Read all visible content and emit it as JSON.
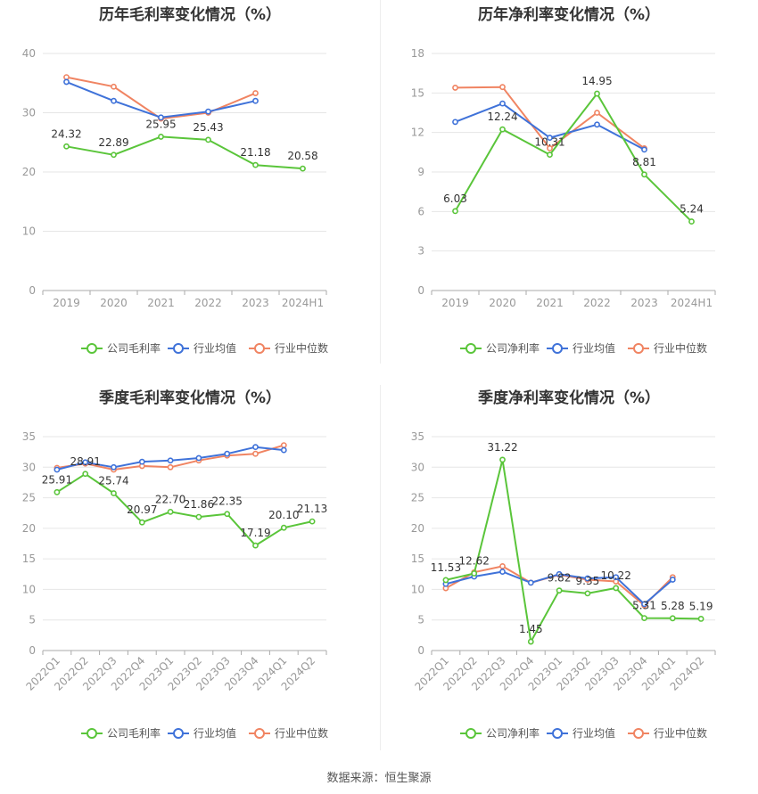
{
  "source_label": "数据来源：恒生聚源",
  "colors": {
    "company": "#5ac53a",
    "industry_avg": "#3f72d9",
    "industry_median": "#f08462",
    "grid": "#e6e6e6",
    "axis": "#999999"
  },
  "chart_data": [
    {
      "id": "annual-gross",
      "type": "line",
      "title": "历年毛利率变化情况（%）",
      "categories": [
        "2019",
        "2020",
        "2021",
        "2022",
        "2023",
        "2024H1"
      ],
      "ylim": [
        0,
        40
      ],
      "yticks": [
        0,
        10,
        20,
        30,
        40
      ],
      "grid": true,
      "legend_position": "bottom",
      "series": [
        {
          "name": "公司毛利率",
          "color": "#5ac53a",
          "values": [
            24.32,
            22.89,
            25.95,
            25.43,
            21.18,
            20.58
          ],
          "labels": [
            "24.32",
            "22.89",
            "25.95",
            "25.43",
            "21.18",
            "20.58"
          ]
        },
        {
          "name": "行业均值",
          "color": "#3f72d9",
          "values": [
            35.2,
            32.0,
            29.2,
            30.2,
            32.0,
            null
          ]
        },
        {
          "name": "行业中位数",
          "color": "#f08462",
          "values": [
            36.0,
            34.4,
            29.0,
            30.0,
            33.3,
            null
          ]
        }
      ]
    },
    {
      "id": "annual-net",
      "type": "line",
      "title": "历年净利率变化情况（%）",
      "categories": [
        "2019",
        "2020",
        "2021",
        "2022",
        "2023",
        "2024H1"
      ],
      "ylim": [
        0,
        18
      ],
      "yticks": [
        0,
        3,
        6,
        9,
        12,
        15,
        18
      ],
      "grid": true,
      "legend_position": "bottom",
      "series": [
        {
          "name": "公司净利率",
          "color": "#5ac53a",
          "values": [
            6.03,
            12.24,
            10.31,
            14.95,
            8.81,
            5.24
          ],
          "labels": [
            "6.03",
            "12.24",
            "10.31",
            "14.95",
            "8.81",
            "5.24"
          ]
        },
        {
          "name": "行业均值",
          "color": "#3f72d9",
          "values": [
            12.8,
            14.2,
            11.6,
            12.6,
            10.7,
            null
          ]
        },
        {
          "name": "行业中位数",
          "color": "#f08462",
          "values": [
            15.4,
            15.45,
            10.8,
            13.5,
            10.8,
            null
          ]
        }
      ]
    },
    {
      "id": "quarter-gross",
      "type": "line",
      "title": "季度毛利率变化情况（%）",
      "categories": [
        "2022Q1",
        "2022Q2",
        "2022Q3",
        "2022Q4",
        "2023Q1",
        "2023Q2",
        "2023Q3",
        "2023Q4",
        "2024Q1",
        "2024Q2"
      ],
      "ylim": [
        0,
        35
      ],
      "yticks": [
        0,
        5,
        10,
        15,
        20,
        25,
        30,
        35
      ],
      "grid": true,
      "legend_position": "bottom",
      "series": [
        {
          "name": "公司毛利率",
          "color": "#5ac53a",
          "values": [
            25.91,
            28.91,
            25.74,
            20.97,
            22.7,
            21.86,
            22.35,
            17.19,
            20.1,
            21.13
          ],
          "labels": [
            "25.91",
            "28.91",
            "25.74",
            "20.97",
            "22.70",
            "21.86",
            "22.35",
            "17.19",
            "20.10",
            "21.13"
          ]
        },
        {
          "name": "行业均值",
          "color": "#3f72d9",
          "values": [
            29.6,
            30.8,
            30.0,
            30.9,
            31.1,
            31.5,
            32.2,
            33.3,
            32.8,
            null
          ]
        },
        {
          "name": "行业中位数",
          "color": "#f08462",
          "values": [
            29.9,
            30.6,
            29.6,
            30.2,
            30.0,
            31.1,
            31.9,
            32.2,
            33.6,
            null
          ]
        }
      ]
    },
    {
      "id": "quarter-net",
      "type": "line",
      "title": "季度净利率变化情况（%）",
      "categories": [
        "2022Q1",
        "2022Q2",
        "2022Q3",
        "2022Q4",
        "2023Q1",
        "2023Q2",
        "2023Q3",
        "2023Q4",
        "2024Q1",
        "2024Q2"
      ],
      "ylim": [
        0,
        35
      ],
      "yticks": [
        0,
        5,
        10,
        15,
        20,
        25,
        30,
        35
      ],
      "grid": true,
      "legend_position": "bottom",
      "series": [
        {
          "name": "公司净利率",
          "color": "#5ac53a",
          "values": [
            11.53,
            12.62,
            31.22,
            1.45,
            9.82,
            9.35,
            10.22,
            5.31,
            5.28,
            5.19
          ],
          "labels": [
            "11.53",
            "12.62",
            "31.22",
            "1.45",
            "9.82",
            "9.35",
            "10.22",
            "5.31",
            "5.28",
            "5.19"
          ]
        },
        {
          "name": "行业均值",
          "color": "#3f72d9",
          "values": [
            10.9,
            12.1,
            12.9,
            11.1,
            12.5,
            11.8,
            12.0,
            7.6,
            11.6,
            null
          ]
        },
        {
          "name": "行业中位数",
          "color": "#f08462",
          "values": [
            10.2,
            12.8,
            13.8,
            11.1,
            12.4,
            11.6,
            11.3,
            7.4,
            12.0,
            null
          ]
        }
      ]
    }
  ]
}
